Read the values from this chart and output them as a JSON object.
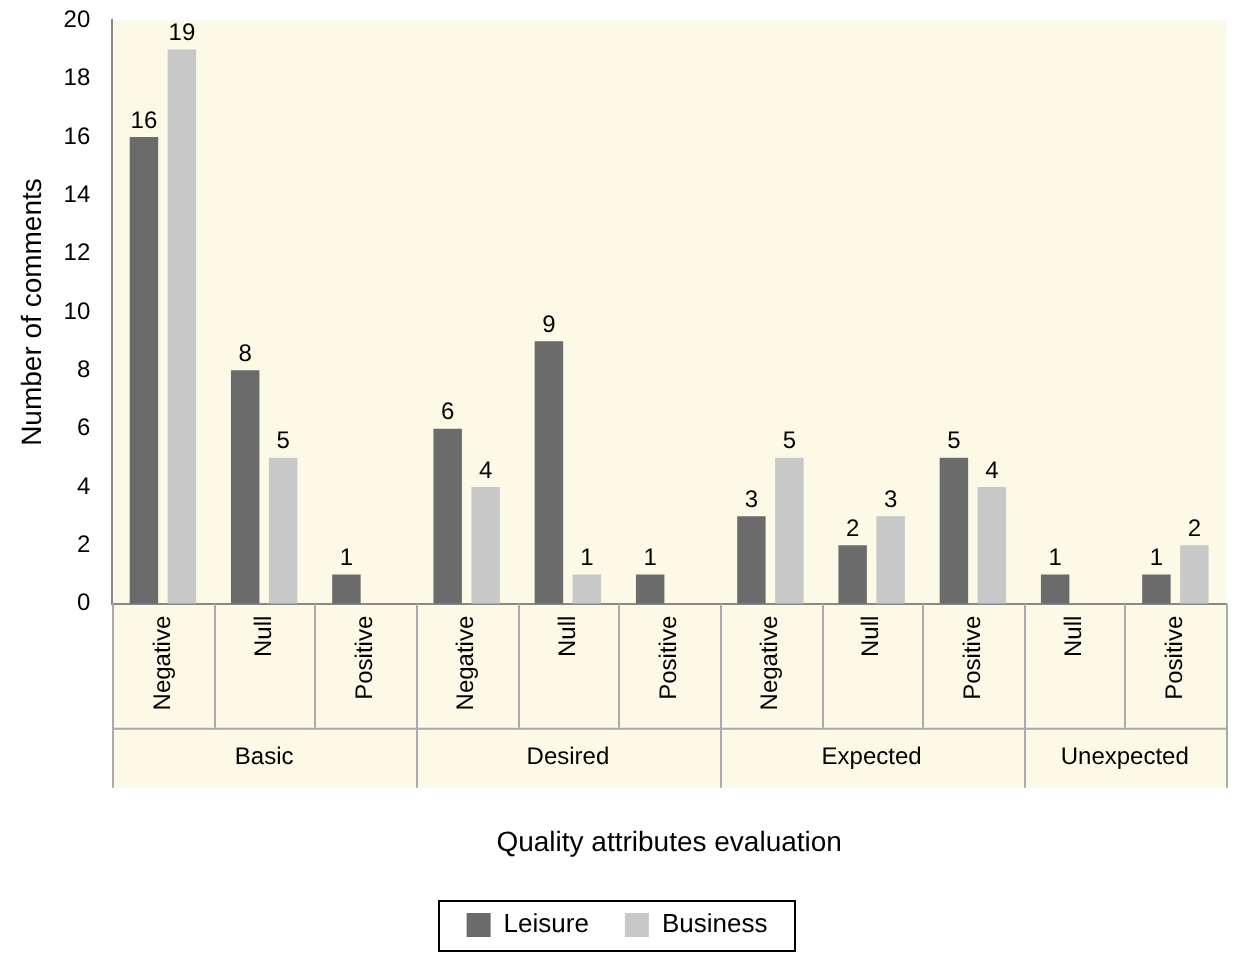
{
  "chart_data": {
    "type": "bar",
    "xlabel": "Quality attributes evaluation",
    "ylabel": "Number of comments",
    "categories": [
      "Negative",
      "Null",
      "Positive",
      "Negative",
      "Null",
      "Positive",
      "Negative",
      "Null",
      "Positive",
      "Null",
      "Positive"
    ],
    "series": [
      {
        "name": "Leisure",
        "color": "#6b6b6b",
        "values": [
          16,
          8,
          1,
          6,
          9,
          1,
          3,
          2,
          5,
          1,
          1
        ]
      },
      {
        "name": "Business",
        "color": "#c8c8c8",
        "values": [
          19,
          5,
          null,
          4,
          1,
          null,
          5,
          3,
          4,
          null,
          2
        ]
      }
    ],
    "annotations": [
      "Basic",
      "Desired",
      "Expected",
      "Unexpected"
    ],
    "ylim": [
      0,
      20
    ],
    "yticks": [
      0,
      2,
      4,
      6,
      8,
      10,
      12,
      14,
      16,
      18,
      20
    ],
    "data_labels": true,
    "grid": false,
    "legend": "bottom"
  }
}
